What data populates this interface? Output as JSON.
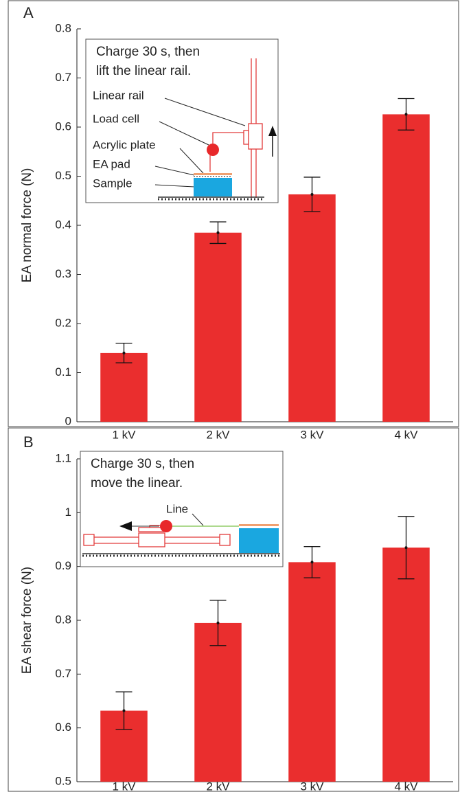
{
  "chart_data": [
    {
      "type": "bar",
      "panel_label": "A",
      "ylabel": "EA normal force (N)",
      "categories": [
        "1 kV",
        "2 kV",
        "3 kV",
        "4 kV"
      ],
      "series": [
        {
          "color": "#ea2e2e",
          "values": [
            0.14,
            0.385,
            0.463,
            0.626
          ],
          "errors": [
            0.02,
            0.022,
            0.035,
            0.032
          ]
        }
      ],
      "ylim": [
        0,
        0.8
      ],
      "yticks": [
        0,
        0.1,
        0.2,
        0.3,
        0.4,
        0.5,
        0.6,
        0.7,
        0.8
      ],
      "inset_text": [
        "Charge 30 s, then",
        "lift the linear rail."
      ],
      "inset_labels": [
        "Linear rail",
        "Load cell",
        "Acrylic plate",
        "EA pad",
        "Sample"
      ]
    },
    {
      "type": "bar",
      "panel_label": "B",
      "ylabel": "EA shear force (N)",
      "categories": [
        "1 kV",
        "2 kV",
        "3 kV",
        "4 kV"
      ],
      "series": [
        {
          "color": "#ea2e2e",
          "values": [
            0.632,
            0.795,
            0.908,
            0.935
          ],
          "errors": [
            0.035,
            0.042,
            0.029,
            0.058
          ]
        }
      ],
      "ylim": [
        0.5,
        1.1
      ],
      "yticks": [
        0.5,
        0.6,
        0.7,
        0.8,
        0.9,
        1,
        1.1
      ],
      "inset_text": [
        "Charge 30 s, then",
        "move the linear."
      ],
      "inset_labels": [
        "Line"
      ]
    }
  ]
}
